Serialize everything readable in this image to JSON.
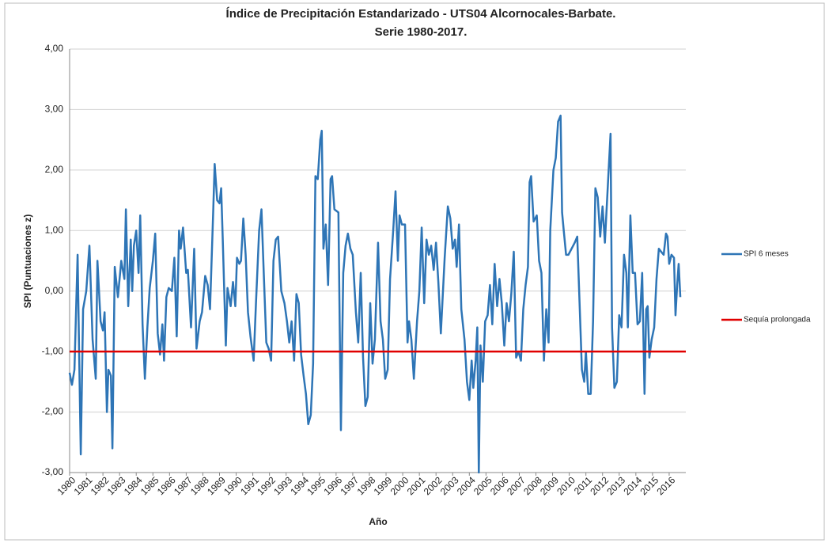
{
  "chart_data": {
    "type": "line",
    "title": "Índice de Precipitación Estandarizado - UTS04 Alcornocales-Barbate.",
    "subtitle": "Serie 1980-2017.",
    "x_label": "Año",
    "y_label": "SPI (Puntuaciones z)",
    "x": [
      1980,
      1980.14,
      1980.29,
      1980.48,
      1980.57,
      1980.67,
      1980.81,
      1981,
      1981.19,
      1981.38,
      1981.57,
      1981.67,
      1981.86,
      1982,
      1982.1,
      1982.24,
      1982.33,
      1982.48,
      1982.57,
      1982.71,
      1982.9,
      1983.1,
      1983.29,
      1983.38,
      1983.52,
      1983.67,
      1983.76,
      1983.86,
      1984,
      1984.14,
      1984.24,
      1984.38,
      1984.52,
      1984.67,
      1984.81,
      1985,
      1985.14,
      1985.29,
      1985.43,
      1985.57,
      1985.67,
      1985.81,
      1985.95,
      1986.14,
      1986.29,
      1986.43,
      1986.57,
      1986.67,
      1986.81,
      1987,
      1987.1,
      1987.29,
      1987.48,
      1987.62,
      1987.81,
      1987.95,
      1988.14,
      1988.29,
      1988.43,
      1988.62,
      1988.71,
      1988.86,
      1989,
      1989.1,
      1989.19,
      1989.38,
      1989.48,
      1989.67,
      1989.81,
      1989.95,
      1990.05,
      1990.19,
      1990.29,
      1990.43,
      1990.57,
      1990.71,
      1990.86,
      1991.05,
      1991.19,
      1991.38,
      1991.52,
      1991.67,
      1991.81,
      1991.95,
      1992.1,
      1992.24,
      1992.38,
      1992.52,
      1992.71,
      1992.9,
      1993.05,
      1993.19,
      1993.33,
      1993.48,
      1993.62,
      1993.76,
      1993.9,
      1994.05,
      1994.19,
      1994.33,
      1994.48,
      1994.62,
      1994.76,
      1994.9,
      1995.05,
      1995.14,
      1995.24,
      1995.38,
      1995.52,
      1995.67,
      1995.76,
      1995.9,
      1996.14,
      1996.29,
      1996.43,
      1996.57,
      1996.71,
      1996.86,
      1997,
      1997.19,
      1997.33,
      1997.48,
      1997.62,
      1997.76,
      1997.9,
      1998.05,
      1998.19,
      1998.33,
      1998.52,
      1998.67,
      1998.81,
      1998.95,
      1999.1,
      1999.24,
      1999.43,
      1999.57,
      1999.71,
      1999.81,
      1999.95,
      2000.14,
      2000.29,
      2000.38,
      2000.52,
      2000.67,
      2000.86,
      2001,
      2001.14,
      2001.29,
      2001.43,
      2001.57,
      2001.71,
      2001.86,
      2002,
      2002.14,
      2002.29,
      2002.52,
      2002.71,
      2002.86,
      2003,
      2003.14,
      2003.24,
      2003.38,
      2003.52,
      2003.71,
      2003.86,
      2004,
      2004.14,
      2004.24,
      2004.38,
      2004.48,
      2004.57,
      2004.67,
      2004.81,
      2004.95,
      2005.1,
      2005.24,
      2005.38,
      2005.52,
      2005.67,
      2005.81,
      2005.95,
      2006.1,
      2006.24,
      2006.38,
      2006.52,
      2006.67,
      2006.81,
      2006.95,
      2007.1,
      2007.24,
      2007.38,
      2007.52,
      2007.62,
      2007.71,
      2007.86,
      2008.05,
      2008.19,
      2008.33,
      2008.48,
      2008.62,
      2008.76,
      2008.86,
      2009.05,
      2009.19,
      2009.33,
      2009.48,
      2009.57,
      2009.67,
      2009.81,
      2009.95,
      2010.14,
      2010.33,
      2010.48,
      2010.62,
      2010.76,
      2010.9,
      2011,
      2011.14,
      2011.29,
      2011.43,
      2011.57,
      2011.71,
      2011.86,
      2012,
      2012.14,
      2012.29,
      2012.48,
      2012.57,
      2012.71,
      2012.86,
      2013,
      2013.14,
      2013.29,
      2013.43,
      2013.52,
      2013.67,
      2013.81,
      2013.95,
      2014.1,
      2014.24,
      2014.38,
      2014.52,
      2014.62,
      2014.71,
      2014.81,
      2014.95,
      2015.1,
      2015.24,
      2015.38,
      2015.52,
      2015.67,
      2015.81,
      2015.9,
      2016,
      2016.14,
      2016.29,
      2016.38,
      2016.48,
      2016.57,
      2016.67
    ],
    "series": [
      {
        "name": "SPI 6 meses",
        "color": "#2e75b6",
        "values": [
          -1.35,
          -1.55,
          -1.3,
          0.6,
          -1.0,
          -2.7,
          -0.3,
          0,
          0.75,
          -0.8,
          -1.45,
          0.5,
          -0.5,
          -0.65,
          -0.35,
          -2.0,
          -1.3,
          -1.4,
          -2.6,
          0.4,
          -0.1,
          0.5,
          0.2,
          1.35,
          -0.25,
          0.85,
          0.0,
          0.75,
          1.0,
          0.3,
          1.25,
          -0.55,
          -1.45,
          -0.6,
          0.05,
          0.5,
          0.95,
          -0.7,
          -1.05,
          -0.55,
          -1.15,
          -0.1,
          0.05,
          0,
          0.55,
          -0.75,
          1.0,
          0.7,
          1.05,
          0.3,
          0.35,
          -0.6,
          0.7,
          -0.95,
          -0.5,
          -0.35,
          0.25,
          0.1,
          -0.3,
          1.3,
          2.1,
          1.5,
          1.45,
          1.7,
          0.9,
          -0.9,
          0.05,
          -0.25,
          0.15,
          -0.25,
          0.55,
          0.45,
          0.5,
          1.2,
          0.6,
          -0.35,
          -0.75,
          -1.15,
          -0.2,
          1.0,
          1.35,
          0.2,
          -0.85,
          -0.95,
          -1.15,
          0.5,
          0.85,
          0.9,
          0.0,
          -0.2,
          -0.5,
          -0.85,
          -0.5,
          -1.15,
          -0.05,
          -0.2,
          -1.05,
          -1.4,
          -1.7,
          -2.2,
          -2.05,
          -1.2,
          1.9,
          1.85,
          2.5,
          2.65,
          0.7,
          1.1,
          0.1,
          1.85,
          1.9,
          1.35,
          1.3,
          -2.3,
          0.3,
          0.75,
          0.95,
          0.7,
          0.6,
          -0.35,
          -0.85,
          0.3,
          -1.1,
          -1.9,
          -1.75,
          -0.2,
          -1.2,
          -0.8,
          0.8,
          -0.5,
          -0.8,
          -1.45,
          -1.3,
          0.2,
          1.0,
          1.65,
          0.5,
          1.25,
          1.1,
          1.1,
          -0.85,
          -0.5,
          -0.8,
          -1.45,
          -0.5,
          0.0,
          1.05,
          -0.2,
          0.85,
          0.6,
          0.75,
          0.35,
          0.8,
          0.15,
          -0.7,
          0.55,
          1.4,
          1.2,
          0.7,
          0.85,
          0.4,
          1.1,
          -0.3,
          -0.8,
          -1.5,
          -1.8,
          -1.15,
          -1.6,
          -1.15,
          -0.6,
          -3.0,
          -0.9,
          -1.5,
          -0.5,
          -0.4,
          0.1,
          -0.55,
          0.45,
          -0.25,
          0.2,
          -0.2,
          -0.9,
          -0.2,
          -0.5,
          -0.05,
          0.65,
          -1.1,
          -1.0,
          -1.15,
          -0.3,
          0.1,
          0.4,
          1.8,
          1.9,
          1.15,
          1.25,
          0.5,
          0.3,
          -1.15,
          -0.3,
          -0.85,
          1.0,
          2.0,
          2.2,
          2.8,
          2.9,
          1.3,
          1.0,
          0.6,
          0.6,
          0.7,
          0.8,
          0.9,
          -0.2,
          -1.3,
          -1.5,
          -1.0,
          -1.7,
          -1.7,
          -0.5,
          1.7,
          1.55,
          0.9,
          1.4,
          0.8,
          1.6,
          2.6,
          -0.6,
          -1.6,
          -1.5,
          -0.4,
          -0.6,
          0.6,
          0.3,
          -0.6,
          1.25,
          0.3,
          0.3,
          -0.55,
          -0.5,
          0.3,
          -1.7,
          -0.3,
          -0.25,
          -1.1,
          -0.8,
          -0.6,
          0.2,
          0.7,
          0.65,
          0.6,
          0.95,
          0.9,
          0.45,
          0.6,
          0.55,
          -0.4,
          0.1,
          0.45,
          -0.1
        ]
      }
    ],
    "reference_line": {
      "name": "Sequía prolongada",
      "color": "#e00000",
      "value": -1
    },
    "xlim": [
      1980,
      2017
    ],
    "xticks": [
      1980,
      1981,
      1982,
      1983,
      1984,
      1985,
      1986,
      1987,
      1988,
      1989,
      1990,
      1991,
      1992,
      1993,
      1994,
      1995,
      1996,
      1997,
      1998,
      1999,
      2000,
      2001,
      2002,
      2003,
      2004,
      2005,
      2006,
      2007,
      2008,
      2009,
      2010,
      2011,
      2012,
      2013,
      2014,
      2015,
      2016
    ],
    "ylim": [
      -3,
      4
    ],
    "yticks": [
      {
        "value": -3,
        "label": "-3,00"
      },
      {
        "value": -2,
        "label": "-2,00"
      },
      {
        "value": -1,
        "label": "-1,00"
      },
      {
        "value": 0,
        "label": "0,00"
      },
      {
        "value": 1,
        "label": "1,00"
      },
      {
        "value": 2,
        "label": "2,00"
      },
      {
        "value": 3,
        "label": "3,00"
      },
      {
        "value": 4,
        "label": "4,00"
      }
    ],
    "grid": true,
    "legend": "right"
  }
}
